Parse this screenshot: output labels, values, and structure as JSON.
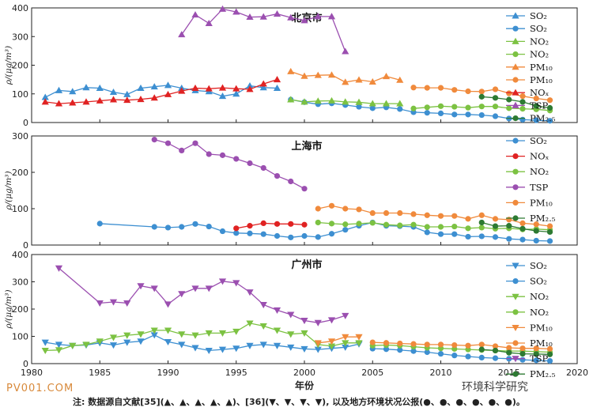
{
  "chart_data": [
    {
      "type": "line",
      "title": "北京市",
      "ylabel": "ρ/(μg/m³)",
      "xlabel": "",
      "xlim": [
        1980,
        2020
      ],
      "ylim": [
        0,
        400
      ],
      "yticks": [
        0,
        100,
        200,
        300,
        400
      ],
      "grid": false,
      "legend": "top-right",
      "series": [
        {
          "name": "SO₂",
          "color": "#3d8fd1",
          "marker": "triangle-up",
          "x": [
            1981,
            1982,
            1983,
            1984,
            1985,
            1986,
            1987,
            1988,
            1989,
            1990,
            1991,
            1992,
            1993,
            1994,
            1995,
            1996,
            1997,
            1998
          ],
          "y": [
            88,
            112,
            108,
            122,
            120,
            106,
            98,
            120,
            125,
            130,
            120,
            112,
            108,
            92,
            100,
            128,
            122,
            120
          ]
        },
        {
          "name": "SO₂",
          "color": "#3d8fd1",
          "marker": "circle",
          "x": [
            1999,
            2000,
            2001,
            2002,
            2003,
            2004,
            2005,
            2006,
            2007,
            2008,
            2009,
            2010,
            2011,
            2012,
            2013,
            2014,
            2015,
            2016,
            2017,
            2018
          ],
          "y": [
            80,
            71,
            64,
            67,
            61,
            55,
            50,
            53,
            47,
            36,
            34,
            32,
            28,
            28,
            26,
            22,
            14,
            10,
            8,
            6
          ]
        },
        {
          "name": "NO₂",
          "color": "#7cc242",
          "marker": "triangle-up",
          "x": [
            1999,
            2000,
            2001,
            2002,
            2003,
            2004,
            2005,
            2006,
            2007
          ],
          "y": [
            80,
            72,
            75,
            76,
            72,
            71,
            66,
            66,
            66
          ]
        },
        {
          "name": "NO₂",
          "color": "#7cc242",
          "marker": "circle",
          "x": [
            2008,
            2009,
            2010,
            2011,
            2012,
            2013,
            2014,
            2015,
            2016,
            2017,
            2018
          ],
          "y": [
            49,
            53,
            57,
            55,
            52,
            56,
            56,
            50,
            48,
            46,
            42
          ]
        },
        {
          "name": "PM₁₀",
          "color": "#f08a3c",
          "marker": "triangle-up",
          "x": [
            1999,
            2000,
            2001,
            2002,
            2003,
            2004,
            2005,
            2006,
            2007
          ],
          "y": [
            178,
            162,
            165,
            166,
            141,
            149,
            142,
            161,
            148
          ]
        },
        {
          "name": "PM₁₀",
          "color": "#f08a3c",
          "marker": "circle",
          "x": [
            2008,
            2009,
            2010,
            2011,
            2012,
            2013,
            2014,
            2015,
            2016,
            2017,
            2018
          ],
          "y": [
            122,
            121,
            121,
            114,
            109,
            108,
            116,
            102,
            92,
            84,
            78
          ]
        },
        {
          "name": "NOₓ",
          "color": "#e02222",
          "marker": "triangle-up",
          "x": [
            1981,
            1982,
            1983,
            1984,
            1985,
            1986,
            1987,
            1988,
            1989,
            1990,
            1991,
            1992,
            1993,
            1994,
            1995,
            1996,
            1997,
            1998
          ],
          "y": [
            72,
            66,
            69,
            72,
            76,
            80,
            78,
            81,
            86,
            98,
            110,
            120,
            118,
            121,
            118,
            116,
            135,
            150
          ]
        },
        {
          "name": "TSP",
          "color": "#9b4fb0",
          "marker": "triangle-up",
          "x": [
            1991,
            1992,
            1993,
            1994,
            1995,
            1996,
            1997,
            1998,
            1999,
            2000,
            2001,
            2002,
            2003
          ],
          "y": [
            307,
            376,
            346,
            396,
            386,
            368,
            369,
            379,
            366,
            356,
            370,
            370,
            248
          ]
        },
        {
          "name": "PM₂.₅",
          "color": "#2d7a32",
          "marker": "circle",
          "x": [
            2013,
            2014,
            2015,
            2016,
            2017,
            2018
          ],
          "y": [
            90,
            86,
            80,
            72,
            58,
            51
          ]
        }
      ]
    },
    {
      "type": "line",
      "title": "上海市",
      "ylabel": "ρ/(μg/m³)",
      "xlabel": "",
      "xlim": [
        1980,
        2020
      ],
      "ylim": [
        0,
        300
      ],
      "yticks": [
        0,
        100,
        200,
        300
      ],
      "grid": false,
      "legend": "top-right",
      "series": [
        {
          "name": "SO₂",
          "color": "#3d8fd1",
          "marker": "circle",
          "x": [
            1985,
            1989,
            1990,
            1991,
            1992,
            1993,
            1994,
            1995,
            1996,
            1997,
            1998,
            1999,
            2000,
            2001,
            2002,
            2003,
            2004,
            2005,
            2006,
            2007,
            2008,
            2009,
            2010,
            2011,
            2012,
            2013,
            2014,
            2015,
            2016,
            2017,
            2018
          ],
          "y": [
            59,
            50,
            48,
            50,
            58,
            51,
            38,
            33,
            32,
            30,
            25,
            21,
            25,
            22,
            31,
            42,
            53,
            62,
            53,
            52,
            50,
            35,
            30,
            30,
            23,
            24,
            22,
            17,
            15,
            12,
            11
          ]
        },
        {
          "name": "NOₓ",
          "color": "#e02222",
          "marker": "circle",
          "x": [
            1995,
            1996,
            1997,
            1998,
            1999,
            2000
          ],
          "y": [
            46,
            53,
            60,
            58,
            58,
            56
          ]
        },
        {
          "name": "NO₂",
          "color": "#7cc242",
          "marker": "circle",
          "x": [
            2001,
            2002,
            2003,
            2004,
            2005,
            2006,
            2007,
            2008,
            2009,
            2010,
            2011,
            2012,
            2013,
            2014,
            2015,
            2016,
            2017,
            2018
          ],
          "y": [
            62,
            59,
            57,
            59,
            61,
            56,
            54,
            56,
            50,
            50,
            51,
            46,
            48,
            45,
            46,
            43,
            44,
            42
          ]
        },
        {
          "name": "TSP",
          "color": "#9b4fb0",
          "marker": "circle",
          "x": [
            1989,
            1990,
            1991,
            1992,
            1993,
            1994,
            1995,
            1996,
            1997,
            1998,
            1999,
            2000
          ],
          "y": [
            290,
            280,
            260,
            280,
            250,
            247,
            237,
            225,
            212,
            190,
            175,
            155
          ]
        },
        {
          "name": "PM₁₀",
          "color": "#f08a3c",
          "marker": "circle",
          "x": [
            2001,
            2002,
            2003,
            2004,
            2005,
            2006,
            2007,
            2008,
            2009,
            2010,
            2011,
            2012,
            2013,
            2014,
            2015,
            2016,
            2017,
            2018
          ],
          "y": [
            100,
            108,
            100,
            98,
            88,
            88,
            88,
            85,
            82,
            80,
            80,
            72,
            82,
            72,
            70,
            60,
            57,
            52
          ]
        },
        {
          "name": "PM₂.₅",
          "color": "#2d7a32",
          "marker": "circle",
          "x": [
            2013,
            2014,
            2015,
            2016,
            2017,
            2018
          ],
          "y": [
            62,
            52,
            53,
            45,
            39,
            36
          ]
        }
      ]
    },
    {
      "type": "line",
      "title": "广州市",
      "ylabel": "ρ/(μg/m³)",
      "xlabel": "年份",
      "xlim": [
        1980,
        2020
      ],
      "ylim": [
        0,
        400
      ],
      "yticks": [
        0,
        100,
        200,
        300,
        400
      ],
      "xticks": [
        1980,
        1985,
        1990,
        1995,
        2000,
        2005,
        2010,
        2015,
        2020
      ],
      "grid": false,
      "legend": "top-right",
      "series": [
        {
          "name": "SO₂",
          "color": "#3d8fd1",
          "marker": "triangle-down",
          "x": [
            1981,
            1982,
            1983,
            1984,
            1985,
            1986,
            1987,
            1988,
            1989,
            1990,
            1991,
            1992,
            1993,
            1994,
            1995,
            1996,
            1997,
            1998,
            1999,
            2000,
            2001,
            2002,
            2003,
            2004
          ],
          "y": [
            78,
            70,
            66,
            68,
            76,
            68,
            78,
            82,
            105,
            80,
            70,
            58,
            48,
            52,
            56,
            66,
            70,
            66,
            60,
            54,
            52,
            56,
            60,
            72
          ]
        },
        {
          "name": "SO₂",
          "color": "#3d8fd1",
          "marker": "circle",
          "x": [
            2005,
            2006,
            2007,
            2008,
            2009,
            2010,
            2011,
            2012,
            2013,
            2014,
            2015,
            2016,
            2017,
            2018
          ],
          "y": [
            55,
            53,
            50,
            46,
            42,
            36,
            30,
            26,
            22,
            20,
            18,
            14,
            12,
            10
          ]
        },
        {
          "name": "NO₂",
          "color": "#7cc242",
          "marker": "triangle-down",
          "x": [
            1981,
            1982,
            1983,
            1984,
            1985,
            1986,
            1987,
            1988,
            1989,
            1990,
            1991,
            1992,
            1993,
            1994,
            1995,
            1996,
            1997,
            1998,
            1999,
            2000,
            2001,
            2002,
            2003,
            2004
          ],
          "y": [
            48,
            50,
            66,
            70,
            82,
            96,
            104,
            108,
            122,
            122,
            108,
            104,
            112,
            112,
            118,
            148,
            138,
            122,
            108,
            112,
            70,
            64,
            76,
            76
          ]
        },
        {
          "name": "NO₂",
          "color": "#7cc242",
          "marker": "circle",
          "x": [
            2005,
            2006,
            2007,
            2008,
            2009,
            2010,
            2011,
            2012,
            2013,
            2014,
            2015,
            2016,
            2017,
            2018
          ],
          "y": [
            66,
            68,
            66,
            62,
            58,
            56,
            54,
            52,
            50,
            48,
            46,
            46,
            44,
            42
          ]
        },
        {
          "name": "PM₁₀",
          "color": "#f08a3c",
          "marker": "triangle-down",
          "x": [
            2001,
            2002,
            2003,
            2004
          ],
          "y": [
            76,
            82,
            98,
            98
          ]
        },
        {
          "name": "PM₁₀",
          "color": "#f08a3c",
          "marker": "circle",
          "x": [
            2005,
            2006,
            2007,
            2008,
            2009,
            2010,
            2011,
            2012,
            2013,
            2014,
            2015,
            2016,
            2017,
            2018
          ],
          "y": [
            78,
            76,
            74,
            72,
            70,
            70,
            68,
            66,
            70,
            64,
            58,
            56,
            56,
            54
          ]
        },
        {
          "name": "TSP",
          "color": "#9b4fb0",
          "marker": "triangle-down",
          "x": [
            1982,
            1985,
            1986,
            1987,
            1988,
            1989,
            1990,
            1991,
            1992,
            1993,
            1994,
            1995,
            1996,
            1997,
            1998,
            1999,
            2000,
            2001,
            2002,
            2003
          ],
          "y": [
            350,
            222,
            226,
            222,
            285,
            276,
            218,
            256,
            276,
            276,
            302,
            296,
            262,
            216,
            196,
            180,
            158,
            150,
            160,
            176
          ]
        },
        {
          "name": "PM₂.₅",
          "color": "#2d7a32",
          "marker": "circle",
          "x": [
            2013,
            2014,
            2015,
            2016,
            2017,
            2018
          ],
          "y": [
            52,
            48,
            40,
            36,
            35,
            34
          ]
        }
      ]
    }
  ],
  "footnote": {
    "text": "注: 数据源自文献[35](▲、▲、▲、▲、▲)、[36](▼、▼、▼、▼), 以及地方环境状况公报(●、●、●、●、●、●)。"
  },
  "watermarks": {
    "left": "PV001.COM",
    "right": "环境科学研究"
  }
}
